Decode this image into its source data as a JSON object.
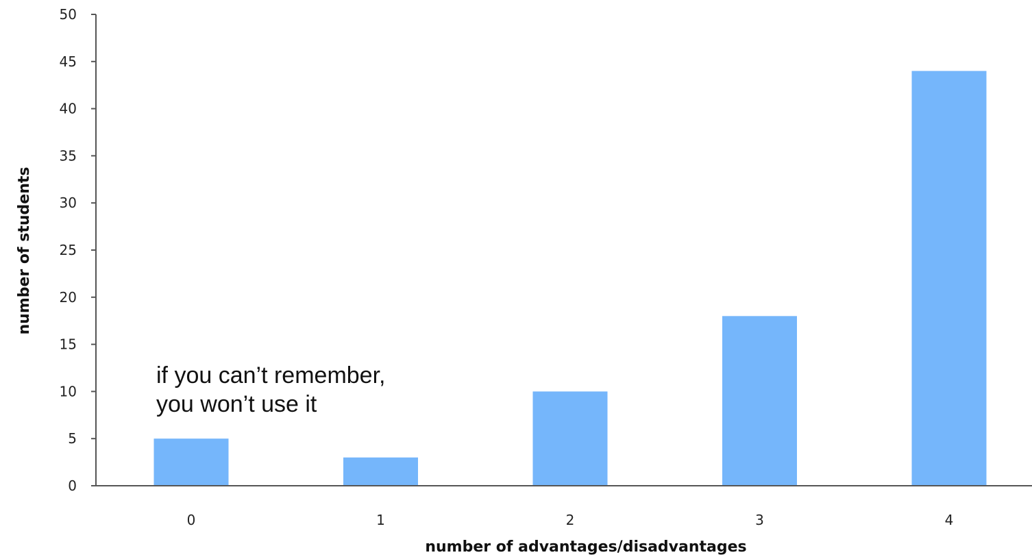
{
  "chart_data": {
    "type": "bar",
    "categories": [
      "0",
      "1",
      "2",
      "3",
      "4"
    ],
    "values": [
      5,
      3,
      10,
      18,
      44
    ],
    "xlabel": "number of advantages/disadvantages",
    "ylabel": "number of students",
    "ylim": [
      0,
      50
    ],
    "yticks": [
      "0",
      "5",
      "10",
      "15",
      "20",
      "25",
      "30",
      "35",
      "40",
      "45",
      "50"
    ],
    "grid": false,
    "bar_color": "#75b6fb",
    "axis_color": "#555555",
    "annotation": {
      "line1": "if you can’t remember,",
      "line2": "you won’t use it"
    }
  }
}
